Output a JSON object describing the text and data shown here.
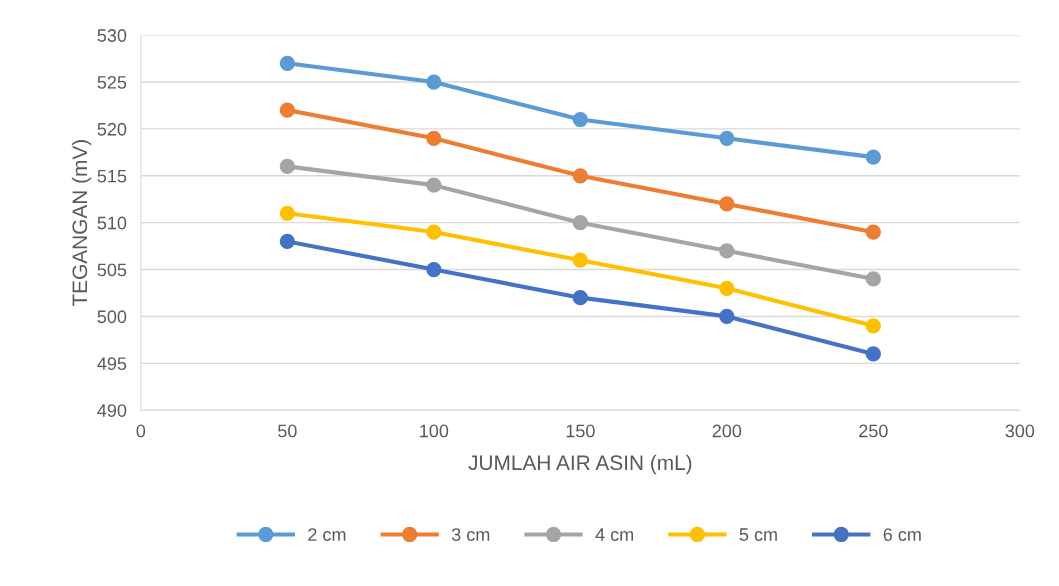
{
  "chart_data": {
    "type": "line",
    "xlabel": "JUMLAH AIR ASIN (mL)",
    "ylabel": "TEGANGAN (mV)",
    "x": [
      50,
      100,
      150,
      200,
      250
    ],
    "series": [
      {
        "name": "2 cm",
        "color": "#5b9bd5",
        "values": [
          527,
          525,
          521,
          519,
          517
        ]
      },
      {
        "name": "3 cm",
        "color": "#ed7d31",
        "values": [
          522,
          519,
          515,
          512,
          509
        ]
      },
      {
        "name": "4 cm",
        "color": "#a5a5a5",
        "values": [
          516,
          514,
          510,
          507,
          504
        ]
      },
      {
        "name": "5 cm",
        "color": "#ffc000",
        "values": [
          511,
          509,
          506,
          503,
          499
        ]
      },
      {
        "name": "6 cm",
        "color": "#4472c4",
        "values": [
          508,
          505,
          502,
          500,
          496
        ]
      }
    ],
    "xlim": [
      0,
      300
    ],
    "xticks": [
      0,
      50,
      100,
      150,
      200,
      250,
      300
    ],
    "ylim": [
      490,
      530
    ],
    "yticks": [
      490,
      495,
      500,
      505,
      510,
      515,
      520,
      525,
      530
    ],
    "grid": "y",
    "legend": "bottom",
    "marker": "circle",
    "line_style": "solid"
  }
}
